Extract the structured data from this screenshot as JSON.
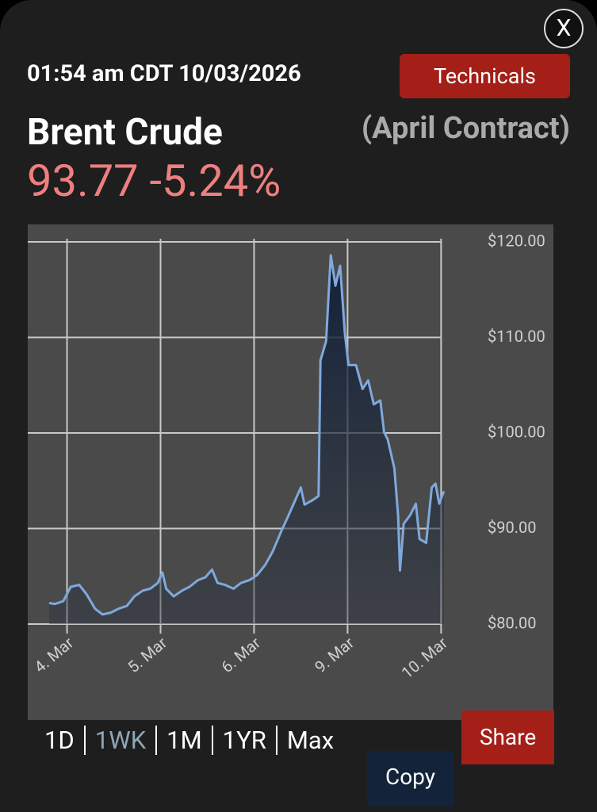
{
  "close": "X",
  "timestamp": "01:54 am CDT 10/03/2026",
  "technicals": "Technicals",
  "instrument": "Brent Crude",
  "contract": "(April Contract)",
  "price": "93.77",
  "change": "-5.24%",
  "periods": [
    "1D",
    "1WK",
    "1M",
    "1YR",
    "Max"
  ],
  "share": "Share",
  "copy": "Copy",
  "chart_data": {
    "type": "line",
    "x": [
      -0.19,
      -0.13,
      -0.04,
      0.04,
      0.13,
      0.21,
      0.3,
      0.38,
      0.47,
      0.55,
      0.64,
      0.72,
      0.81,
      0.89,
      0.97,
      1.02,
      1.06,
      1.14,
      1.23,
      1.31,
      1.4,
      1.48,
      1.55,
      1.61,
      1.69,
      1.78,
      1.86,
      1.95,
      2.03,
      2.12,
      2.2,
      2.29,
      2.37,
      2.46,
      2.5,
      2.54,
      2.63,
      2.69,
      2.71,
      2.77,
      2.82,
      2.87,
      2.92,
      2.97,
      3.01,
      3.09,
      3.16,
      3.22,
      3.28,
      3.35,
      3.39,
      3.43,
      3.5,
      3.54,
      3.56,
      3.6,
      3.67,
      3.73,
      3.77,
      3.84,
      3.9,
      3.94,
      3.98,
      4.03
    ],
    "series": [
      {
        "name": "Brent Crude",
        "color": "#7fa9dd",
        "values": [
          82.2,
          82.1,
          82.4,
          83.9,
          84.1,
          83.1,
          81.6,
          81.0,
          81.2,
          81.6,
          81.9,
          82.9,
          83.5,
          83.7,
          84.3,
          85.4,
          83.7,
          82.9,
          83.5,
          83.9,
          84.6,
          84.9,
          85.7,
          84.3,
          84.1,
          83.7,
          84.3,
          84.6,
          85.1,
          86.2,
          87.6,
          89.7,
          91.4,
          93.4,
          94.3,
          92.5,
          93.0,
          93.4,
          107.6,
          109.6,
          118.6,
          115.4,
          117.5,
          110.5,
          107.1,
          107.1,
          104.6,
          105.5,
          103.0,
          103.4,
          100.1,
          99.3,
          96.3,
          91.4,
          85.6,
          90.5,
          91.4,
          92.6,
          88.9,
          88.5,
          94.3,
          94.7,
          92.6,
          93.9
        ]
      }
    ],
    "xlim": [
      -0.42,
      4.37
    ],
    "xticks": [
      {
        "value": 0,
        "label": "4. Mar"
      },
      {
        "value": 1,
        "label": "5. Mar"
      },
      {
        "value": 2,
        "label": "6. Mar"
      },
      {
        "value": 3,
        "label": "9. Mar"
      },
      {
        "value": 4,
        "label": "10. Mar"
      }
    ],
    "ylim": [
      80,
      120
    ],
    "yticks": [
      {
        "value": 80,
        "label": "$80.00"
      },
      {
        "value": 90,
        "label": "$90.00"
      },
      {
        "value": 100,
        "label": "$100.00"
      },
      {
        "value": 110,
        "label": "$110.00"
      },
      {
        "value": 120,
        "label": "$120.00"
      }
    ],
    "grid": true
  }
}
